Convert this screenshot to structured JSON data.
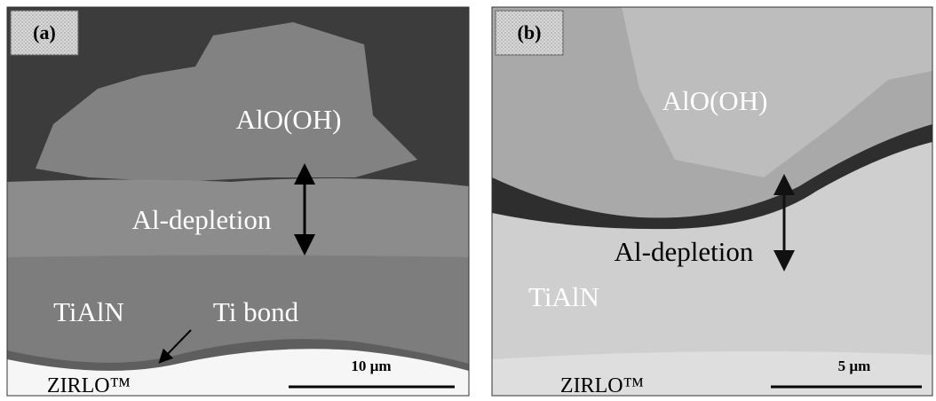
{
  "panels": [
    {
      "label": "(a)",
      "annotations": {
        "top": "AlO(OH)",
        "depletion": "Al-depletion",
        "coating": "TiAlN",
        "bond": "Ti bond",
        "substrate": "ZIRLO™"
      },
      "scale_bar": "10 µm"
    },
    {
      "label": "(b)",
      "annotations": {
        "top": "AlO(OH)",
        "depletion": "Al-depletion",
        "coating": "TiAlN",
        "substrate": "ZIRLO™"
      },
      "scale_bar": "5 µm"
    }
  ]
}
